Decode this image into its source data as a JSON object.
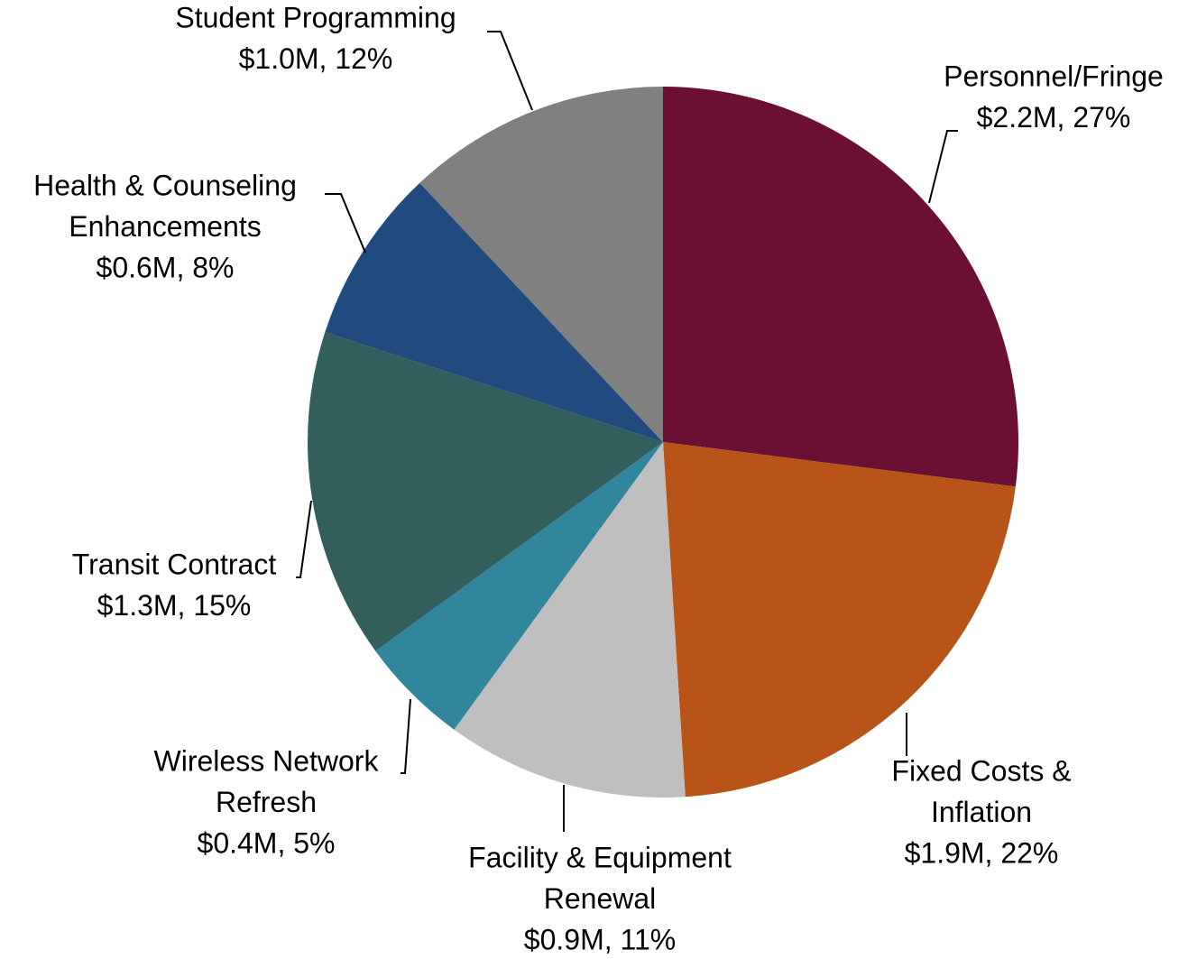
{
  "chart_data": {
    "type": "pie",
    "categories": [
      [
        "Personnel/Fringe"
      ],
      [
        "Fixed Costs &",
        "Inflation"
      ],
      [
        "Facility & Equipment",
        "Renewal"
      ],
      [
        "Wireless Network",
        "Refresh"
      ],
      [
        "Transit Contract"
      ],
      [
        "Health & Counseling",
        "Enhancements"
      ],
      [
        "Student Programming"
      ]
    ],
    "values": [
      27,
      22,
      11,
      5,
      15,
      8,
      12
    ],
    "value_labels": [
      "$2.2M, 27%",
      "$1.9M, 22%",
      "$0.9M, 11%",
      "$0.4M, 5%",
      "$1.3M, 15%",
      "$0.6M, 8%",
      "$1.0M, 12%"
    ],
    "colors": [
      "#6b1034",
      "#b85418",
      "#bfbfbf",
      "#31859c",
      "#325e5c",
      "#214a7e",
      "#808080"
    ]
  }
}
